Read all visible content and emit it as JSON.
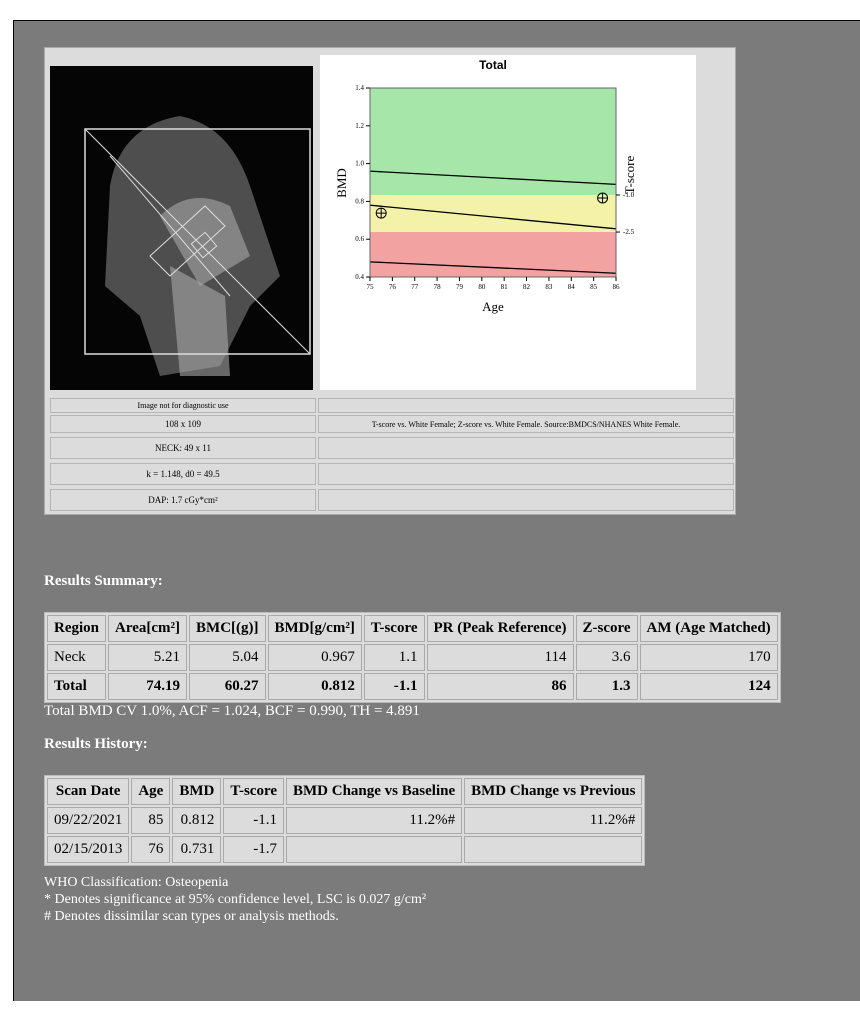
{
  "image_panel": {
    "info": [
      "Image not for diagnostic use",
      "108 x 109",
      "NECK: 49 x 11",
      "k = 1.148, d0 = 49.5",
      "DAP: 1.7 cGy*cm²"
    ],
    "note": "T-score vs. White Female; Z-score vs. White Female. Source:BMDCS/NHANES White Female."
  },
  "chart_data": {
    "type": "line",
    "title": "Total",
    "x_label": "Age",
    "y_label": "BMD",
    "y2_label": "T-score",
    "xlim": [
      75,
      86
    ],
    "xticks": [
      75,
      76,
      77,
      78,
      79,
      80,
      81,
      82,
      83,
      84,
      85,
      86
    ],
    "ylim": [
      0.4,
      1.4
    ],
    "yticks": [
      0.4,
      0.6,
      0.8,
      {
        "value": 1.0,
        "label": "1.0"
      },
      1.2,
      1.4
    ],
    "y2lim": [
      -4.32,
      3.33
    ],
    "y2ticks": [
      {
        "value": -1.0,
        "label": "-1.0"
      },
      -2.5
    ],
    "zones": [
      {
        "from": 0.834,
        "to": 1.4,
        "color": "#a6e6a8"
      },
      {
        "from": 0.638,
        "to": 0.834,
        "color": "#f4f1a8"
      },
      {
        "from": 0.4,
        "to": 0.638,
        "color": "#f3a2a2"
      }
    ],
    "series": [
      {
        "color": "#000000",
        "x": [
          75,
          86
        ],
        "values": [
          0.96,
          0.89
        ]
      },
      {
        "color": "#000000",
        "x": [
          75,
          86
        ],
        "values": [
          0.78,
          0.655
        ]
      },
      {
        "color": "#000000",
        "x": [
          75,
          86
        ],
        "values": [
          0.48,
          0.42
        ]
      }
    ],
    "points": {
      "x": [
        75.5,
        85.4
      ],
      "values": [
        0.738,
        0.818
      ]
    }
  },
  "results_summary": {
    "title": "Results Summary:",
    "columns": [
      "Region",
      "Area[cm²]",
      "BMC[(g)]",
      "BMD[g/cm²]",
      "T-score",
      "PR (Peak Reference)",
      "Z-score",
      "AM (Age Matched)"
    ],
    "rows": [
      [
        "Neck",
        5.21,
        5.04,
        0.967,
        1.1,
        114,
        3.6,
        170
      ],
      [
        "Total",
        74.19,
        60.27,
        0.812,
        -1.1,
        86,
        1.3,
        124
      ]
    ],
    "note": "Total BMD CV 1.0%, ACF = 1.024, BCF = 0.990, TH = 4.891"
  },
  "results_history": {
    "title": "Results History:",
    "columns": [
      "Scan Date",
      "Age",
      "BMD",
      "T-score",
      "BMD Change vs Baseline",
      "BMD Change vs Previous"
    ],
    "rows": [
      [
        "09/22/2021",
        85,
        0.812,
        -1.1,
        "11.2%#",
        "11.2%#"
      ],
      [
        "02/15/2013",
        76,
        0.731,
        -1.7
      ]
    ]
  },
  "footer": [
    "WHO Classification: Osteopenia",
    "* Denotes significance at 95% confidence level, LSC is 0.027 g/cm²",
    "# Denotes dissimilar scan types or analysis methods."
  ]
}
